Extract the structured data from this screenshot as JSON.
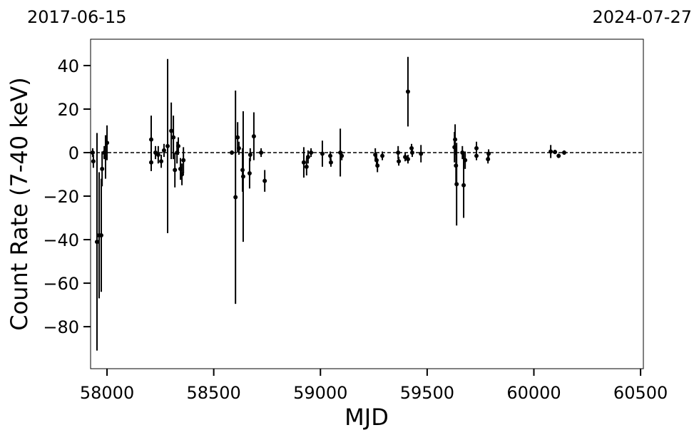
{
  "chart_data": {
    "type": "errorbar",
    "date_labels": [
      "2017-06-15",
      "2024-07-27"
    ],
    "x_label": "MJD",
    "y_label": "Count Rate (7-40 keV)",
    "color": "#000000",
    "hline": 0,
    "xlim": [
      57923,
      60513
    ],
    "ylim": [
      -99.3,
      52.1
    ],
    "xticks": [
      58000,
      58500,
      59000,
      59500,
      60000,
      60500
    ],
    "yticks": [
      {
        "value": -80,
        "label": "−80"
      },
      {
        "value": -60,
        "label": "−60"
      },
      {
        "value": -40,
        "label": "−40"
      },
      {
        "value": -20,
        "label": "−20"
      },
      0,
      20,
      40
    ],
    "x": [
      57933,
      57936,
      57953,
      57963,
      57973,
      57977,
      57987,
      58000,
      57993,
      58207,
      58207,
      58227,
      58240,
      58254,
      58267,
      58284,
      58301,
      58311,
      58318,
      58328,
      58344,
      58351,
      58358,
      58334,
      58585,
      58602,
      58612,
      58618,
      58635,
      58638,
      58668,
      58671,
      58688,
      58722,
      58739,
      58922,
      58935,
      58942,
      58956,
      59009,
      59046,
      59049,
      59093,
      59100,
      59257,
      59263,
      59267,
      59290,
      59364,
      59367,
      59397,
      59410,
      59410,
      59427,
      59430,
      59471,
      59628,
      59631,
      59635,
      59638,
      59665,
      59671,
      59678,
      59731,
      59731,
      59785,
      59788,
      60079,
      60099,
      60116,
      60142
    ],
    "values": [
      0,
      -4,
      -41,
      -38,
      -38,
      -7.5,
      0,
      4.5,
      -2,
      6,
      -4.5,
      0,
      -1,
      -4,
      1,
      3,
      10,
      7,
      -8,
      0,
      -7.5,
      -10,
      -3.5,
      3,
      0,
      -20.5,
      7,
      2,
      -8,
      -11,
      -9.5,
      -1,
      7.5,
      0,
      -13,
      -4.5,
      -6.5,
      -2,
      0,
      -0.5,
      -1.5,
      -4.5,
      0,
      -1.5,
      -1,
      -3.5,
      -6,
      -1.5,
      0,
      -4,
      -2,
      28,
      -3,
      2,
      0,
      -0.5,
      2.5,
      6,
      -6,
      -14.5,
      0,
      -15,
      -3.5,
      2,
      -1.5,
      -3,
      -0.5,
      0.5,
      0.3,
      -1.5,
      0
    ],
    "errors": [
      2,
      3,
      50,
      29,
      26,
      8,
      3,
      8,
      10,
      11,
      4,
      3,
      4,
      3,
      3,
      40,
      13,
      10,
      8,
      5,
      5,
      5,
      6,
      4,
      1,
      49,
      7,
      3,
      10,
      30,
      7,
      3,
      11,
      2,
      5,
      7,
      4,
      3,
      2,
      6,
      2,
      2,
      11,
      2,
      3,
      3,
      3,
      2,
      3,
      2,
      2,
      16,
      2,
      2,
      2,
      4,
      7,
      7,
      8,
      19,
      3,
      15,
      4,
      3,
      2,
      2,
      2,
      3,
      1,
      1,
      1
    ]
  }
}
